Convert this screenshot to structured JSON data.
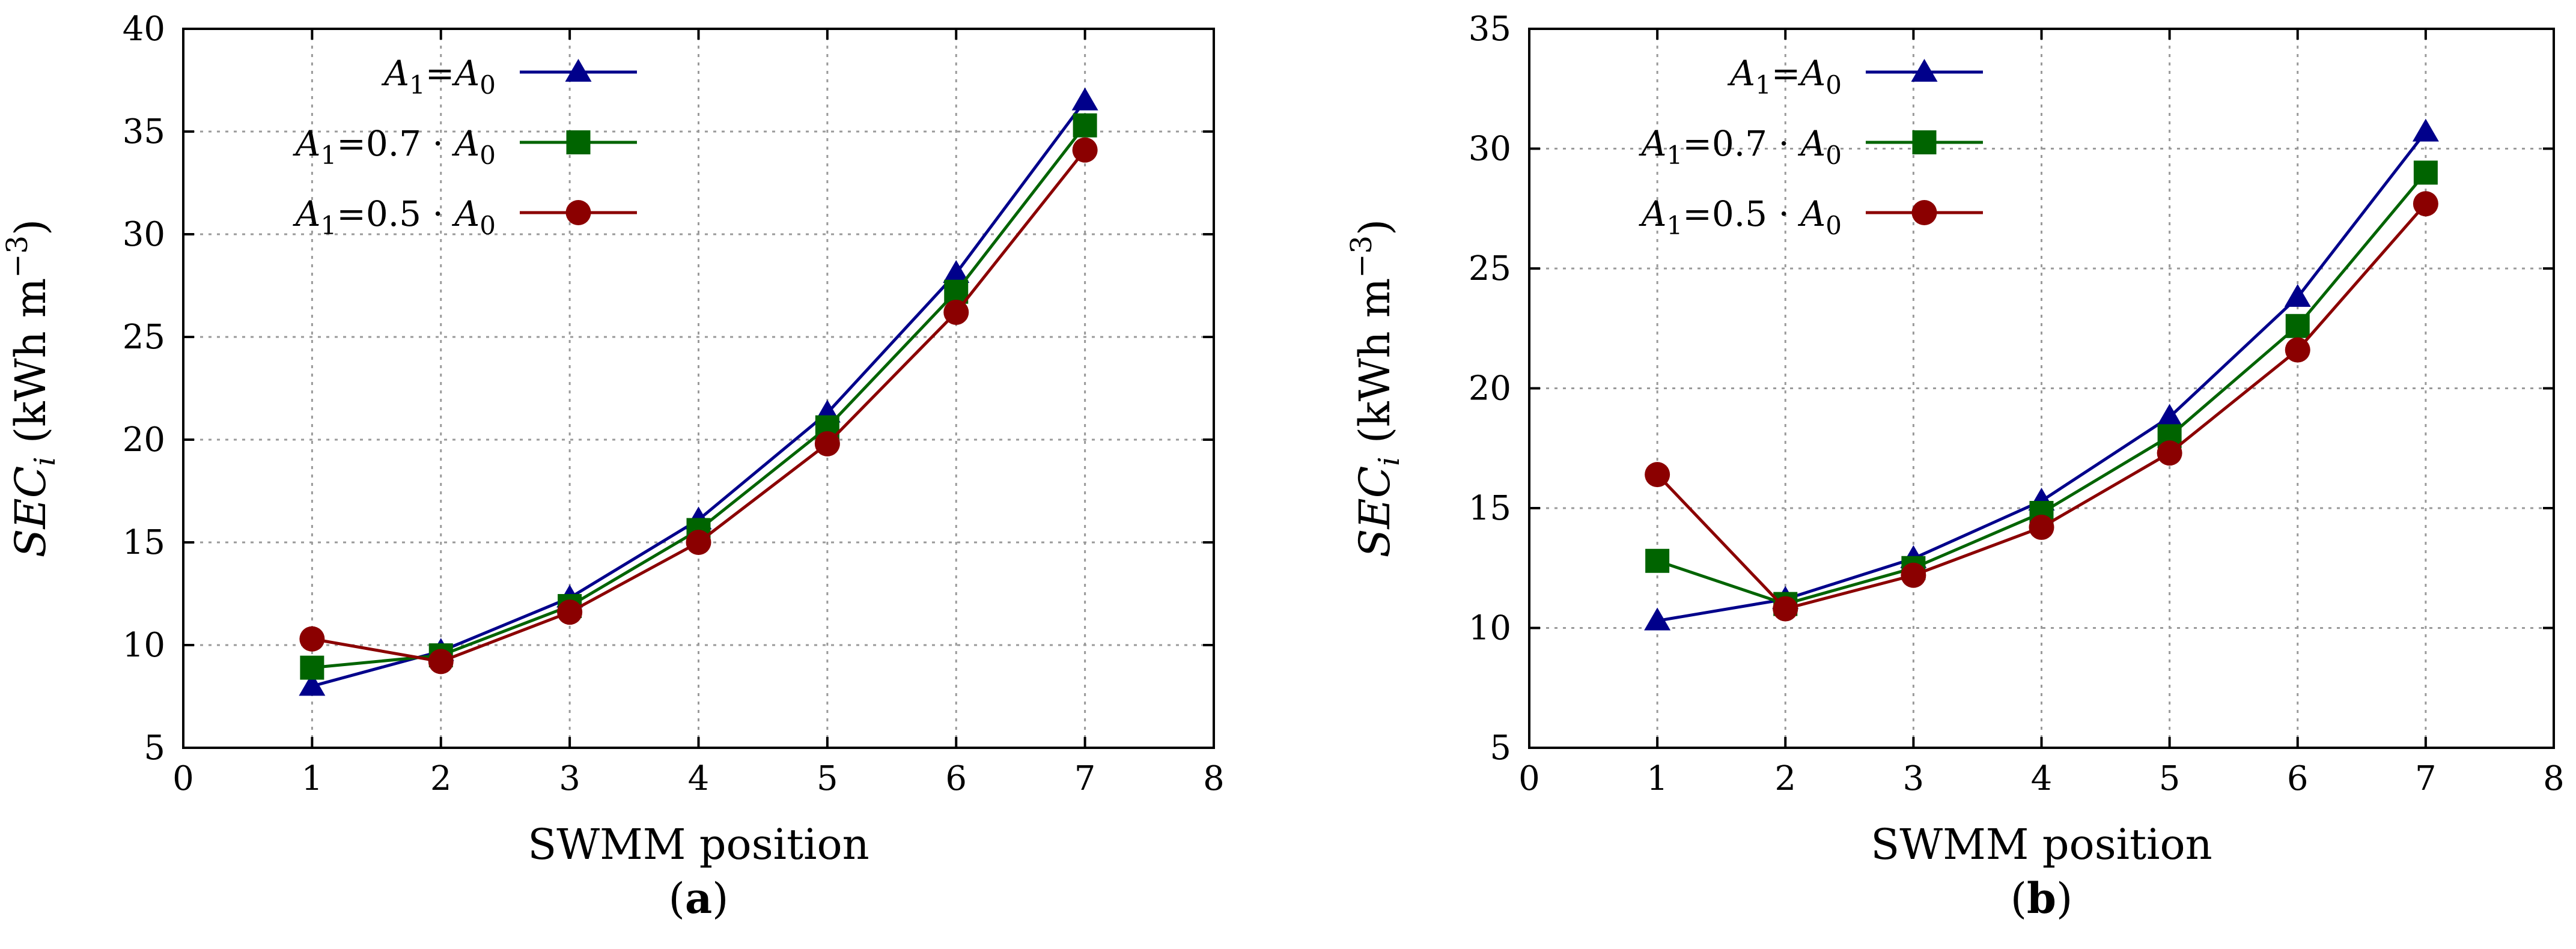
{
  "colors": {
    "series_a1_eq_a0": "#00008b",
    "series_a1_07": "#006400",
    "series_a1_05": "#8b0000",
    "grid": "#9a9a9a",
    "axis": "#000000"
  },
  "legend": {
    "labels": [
      {
        "main": "A",
        "sub1": "1",
        "mid": "=A",
        "sub2": "0",
        "tail": ""
      },
      {
        "main": "A",
        "sub1": "1",
        "mid": "=0.7 · A",
        "sub2": "0",
        "tail": ""
      },
      {
        "main": "A",
        "sub1": "1",
        "mid": "=0.5 · A",
        "sub2": "0",
        "tail": ""
      }
    ]
  },
  "ylabel_parts": {
    "main": "SEC",
    "sub": "i",
    "unit": " (kWh m",
    "sup": "−3",
    "close": ")"
  },
  "chart_data": [
    {
      "type": "line",
      "panel_label": "(a)",
      "panel_letter": "a",
      "xlabel": "SWMM position",
      "ylabel": "SEC_i (kWh m^-3)",
      "xlim": [
        0,
        8
      ],
      "ylim": [
        5,
        40
      ],
      "xticks": [
        0,
        1,
        2,
        3,
        4,
        5,
        6,
        7,
        8
      ],
      "yticks": [
        5,
        10,
        15,
        20,
        25,
        30,
        35,
        40
      ],
      "grid": true,
      "legend_position": "top-left",
      "x": [
        1,
        2,
        3,
        4,
        5,
        6,
        7
      ],
      "series": [
        {
          "name": "A1=A0",
          "marker": "triangle",
          "values": [
            8.0,
            9.7,
            12.3,
            16.1,
            21.3,
            28.1,
            36.5
          ]
        },
        {
          "name": "A1=0.7·A0",
          "marker": "square",
          "values": [
            8.9,
            9.5,
            11.9,
            15.6,
            20.6,
            27.2,
            35.3
          ]
        },
        {
          "name": "A1=0.5·A0",
          "marker": "circle",
          "values": [
            10.3,
            9.2,
            11.6,
            15.0,
            19.8,
            26.2,
            34.1
          ]
        }
      ]
    },
    {
      "type": "line",
      "panel_label": "(b)",
      "panel_letter": "b",
      "xlabel": "SWMM position",
      "ylabel": "SEC_i (kWh m^-3)",
      "xlim": [
        0,
        8
      ],
      "ylim": [
        5,
        35
      ],
      "xticks": [
        0,
        1,
        2,
        3,
        4,
        5,
        6,
        7,
        8
      ],
      "yticks": [
        5,
        10,
        15,
        20,
        25,
        30,
        35
      ],
      "grid": true,
      "legend_position": "top-left",
      "x": [
        1,
        2,
        3,
        4,
        5,
        6,
        7
      ],
      "series": [
        {
          "name": "A1=A0",
          "marker": "triangle",
          "values": [
            10.3,
            11.2,
            12.9,
            15.3,
            18.8,
            23.8,
            30.7
          ]
        },
        {
          "name": "A1=0.7·A0",
          "marker": "square",
          "values": [
            12.8,
            11.0,
            12.5,
            14.8,
            18.0,
            22.6,
            29.0
          ]
        },
        {
          "name": "A1=0.5·A0",
          "marker": "circle",
          "values": [
            16.4,
            10.8,
            12.2,
            14.2,
            17.3,
            21.6,
            27.7
          ]
        }
      ]
    }
  ]
}
